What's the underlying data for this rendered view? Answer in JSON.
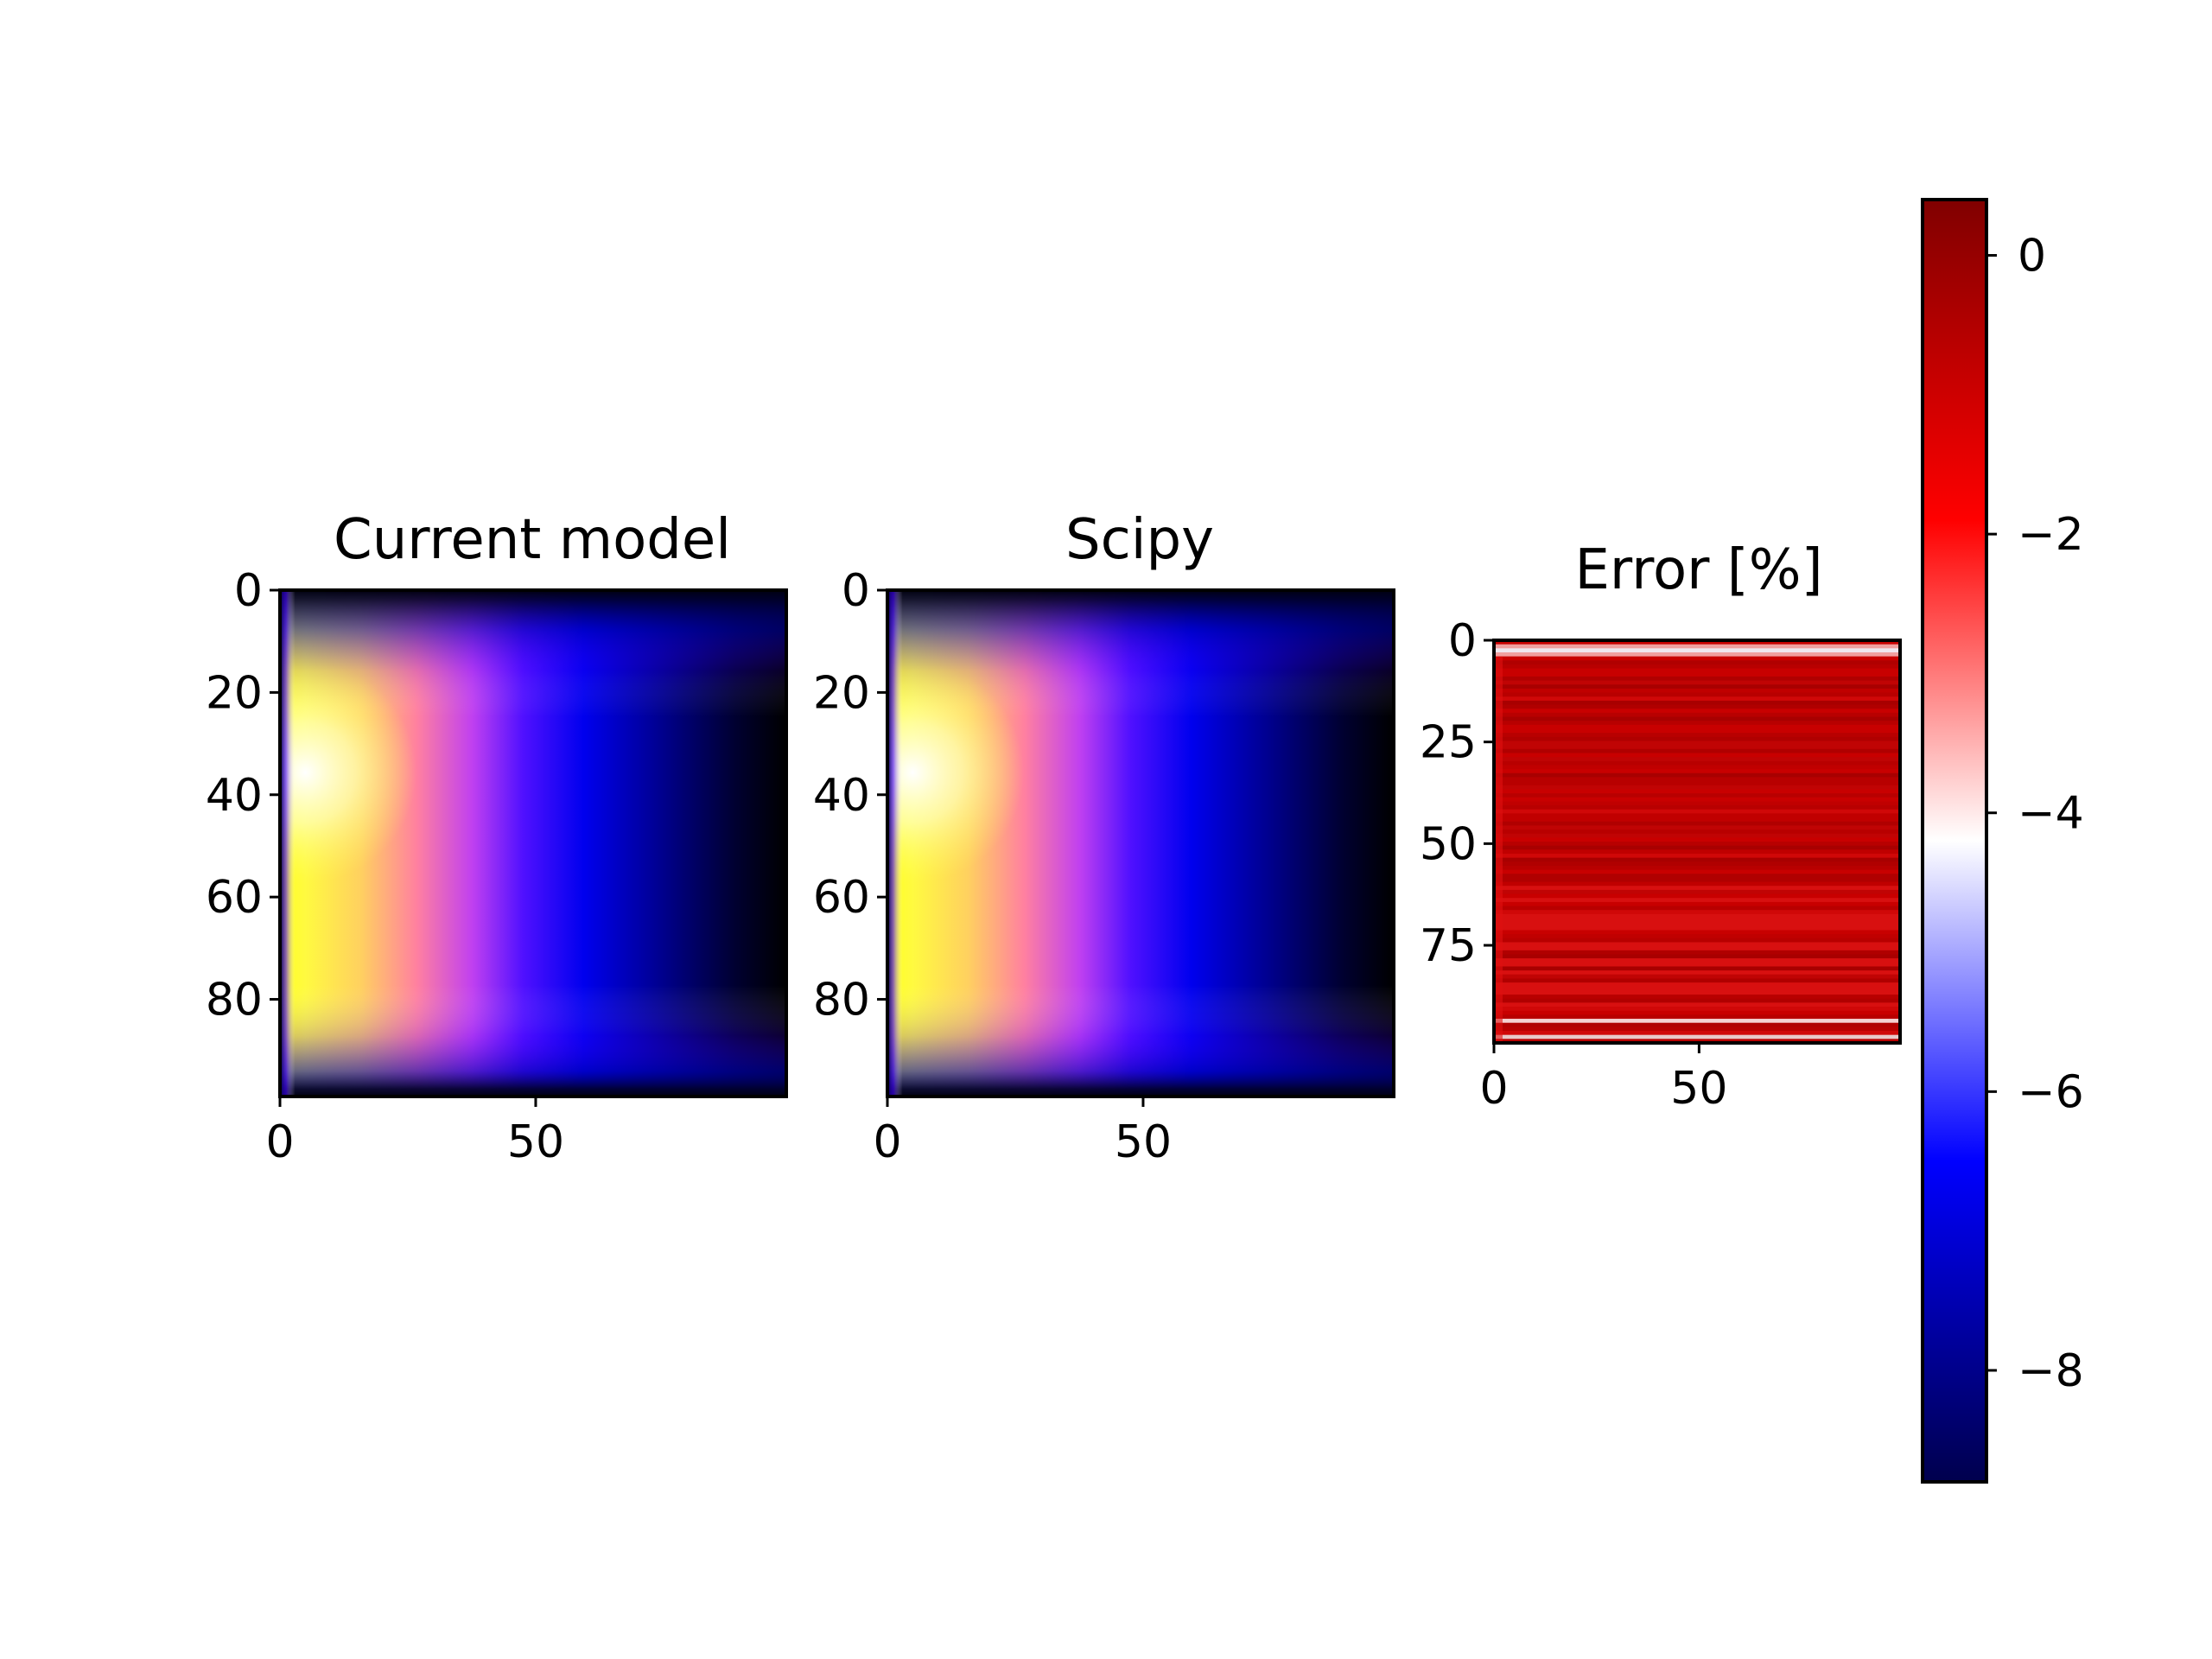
{
  "chart_data": [
    {
      "type": "heatmap",
      "title": "Current model",
      "colormap": "gnuplot2",
      "xticks": [
        "0",
        "50"
      ],
      "yticks": [
        "0",
        "20",
        "40",
        "60",
        "80"
      ],
      "xlim": [
        0,
        99
      ],
      "ylim": [
        99,
        0
      ],
      "grid": false,
      "description_of_field": "intensity peaks near x≈5, y≈35; decays toward right and toward top/bottom edges"
    },
    {
      "type": "heatmap",
      "title": "Scipy",
      "colormap": "gnuplot2",
      "xticks": [
        "0",
        "50"
      ],
      "yticks": [
        "0",
        "20",
        "40",
        "60",
        "80"
      ],
      "xlim": [
        0,
        99
      ],
      "ylim": [
        99,
        0
      ],
      "grid": false
    },
    {
      "type": "heatmap",
      "title": "Error [%]",
      "colormap": "seismic",
      "xticks": [
        "0",
        "50"
      ],
      "yticks": [
        "0",
        "25",
        "50",
        "75"
      ],
      "xlim": [
        0,
        99
      ],
      "ylim": [
        99,
        0
      ],
      "grid": false,
      "colorbar": {
        "ticks": [
          "0",
          "−2",
          "−4",
          "−6",
          "−8"
        ],
        "range": [
          -8.8,
          0.4
        ]
      }
    }
  ],
  "colors": {
    "background": "#ffffff",
    "axis": "#000000"
  }
}
